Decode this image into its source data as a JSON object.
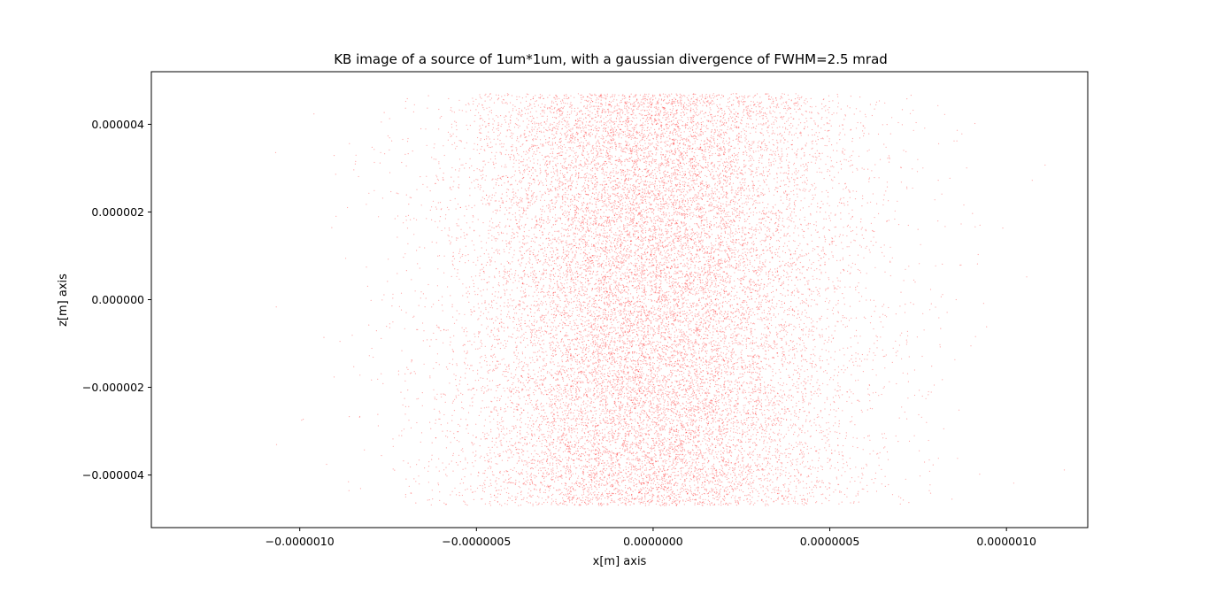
{
  "chart_data": {
    "type": "scatter",
    "title": "KB image of a source of 1um*1um, with a gaussian divergence of FWHM=2.5 mrad",
    "xlabel": "x[m] axis",
    "ylabel": "z[m] axis",
    "xlim": [
      -1.42e-06,
      1.23e-06
    ],
    "ylim": [
      -5.2e-06,
      5.2e-06
    ],
    "x_ticks": [
      -1e-06,
      -5e-07,
      0.0,
      5e-07,
      1e-06
    ],
    "x_tick_labels": [
      "−0.0000010",
      "−0.0000005",
      "0.0000000",
      "0.0000005",
      "0.0000010"
    ],
    "y_ticks": [
      -4e-06,
      -2e-06,
      0.0,
      2e-06,
      4e-06
    ],
    "y_tick_labels": [
      "−0.000004",
      "−0.000002",
      "0.000000",
      "0.000002",
      "0.000004"
    ],
    "grid": false,
    "marker_color": "#ff0000",
    "series": [
      {
        "x_distribution": "gaussian",
        "x_mean": 0.0,
        "x_sigma": 2.8e-07,
        "z_distribution": "uniform",
        "z_range": [
          -4.7e-06,
          4.7e-06
        ],
        "n_points": 20000
      }
    ]
  }
}
